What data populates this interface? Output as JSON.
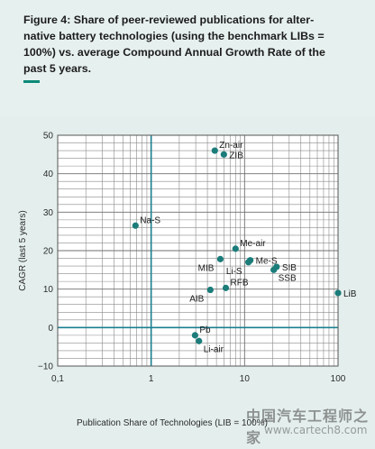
{
  "caption": {
    "line1": "Figure 4: Share of peer-reviewed publications for alter-",
    "line2": "native battery technologies (using the benchmark LIBs =",
    "line3": "100%) vs. average Compound Annual Growth Rate of the",
    "line4": "past 5 years."
  },
  "watermark": {
    "text": "中国汽车工程师之家",
    "url": "www.cartech8.com"
  },
  "colors": {
    "caption_bg": "#e6f0ee",
    "panel_bg": "#e4efed",
    "accent": "#0c8a78",
    "grid_major": "#6f6f6f",
    "grid_minor": "#8a8a8a",
    "zero_line": "#1a7f90",
    "marker": "#1b7c7a"
  },
  "chart_data": {
    "type": "scatter",
    "title": "",
    "xlabel": "Publication Share of Technologies (LIB = 100%)",
    "ylabel": "CAGR (last 5 years)",
    "xscale": "log",
    "xlim": [
      0.1,
      100
    ],
    "ylim": [
      -10,
      50
    ],
    "xticks": [
      0.1,
      1,
      10,
      100
    ],
    "xtick_labels": [
      "0,1",
      "1",
      "10",
      "100"
    ],
    "yticks": [
      -10,
      0,
      10,
      20,
      30,
      40,
      50
    ],
    "ytick_labels": [
      "−10",
      "0",
      "10",
      "20",
      "30",
      "40",
      "50"
    ],
    "grid": true,
    "points": [
      {
        "label": "Zn-air",
        "x": 4.8,
        "y": 46.0,
        "label_pos": "right-up"
      },
      {
        "label": "ZIB",
        "x": 6.0,
        "y": 45.0,
        "label_pos": "right"
      },
      {
        "label": "Na-S",
        "x": 0.68,
        "y": 26.5,
        "label_pos": "right-up"
      },
      {
        "label": "Me-air",
        "x": 8.0,
        "y": 20.5,
        "label_pos": "right-up"
      },
      {
        "label": "MIB",
        "x": 5.5,
        "y": 17.8,
        "label_pos": "left-down"
      },
      {
        "label": "Me-S",
        "x": 11.5,
        "y": 17.5,
        "label_pos": "right"
      },
      {
        "label": "Li-S",
        "x": 11.0,
        "y": 17.0,
        "label_pos": "left-down"
      },
      {
        "label": "SIB",
        "x": 22.0,
        "y": 15.8,
        "label_pos": "right"
      },
      {
        "label": "SSB",
        "x": 20.5,
        "y": 15.0,
        "label_pos": "right-down"
      },
      {
        "label": "RFB",
        "x": 6.3,
        "y": 10.3,
        "label_pos": "right-up"
      },
      {
        "label": "AIB",
        "x": 4.3,
        "y": 9.8,
        "label_pos": "left-down"
      },
      {
        "label": "LiB",
        "x": 100,
        "y": 9.0,
        "label_pos": "right"
      },
      {
        "label": "Pb",
        "x": 2.95,
        "y": -2.0,
        "label_pos": "right-up"
      },
      {
        "label": "Li-air",
        "x": 3.25,
        "y": -3.5,
        "label_pos": "right-down"
      }
    ]
  }
}
